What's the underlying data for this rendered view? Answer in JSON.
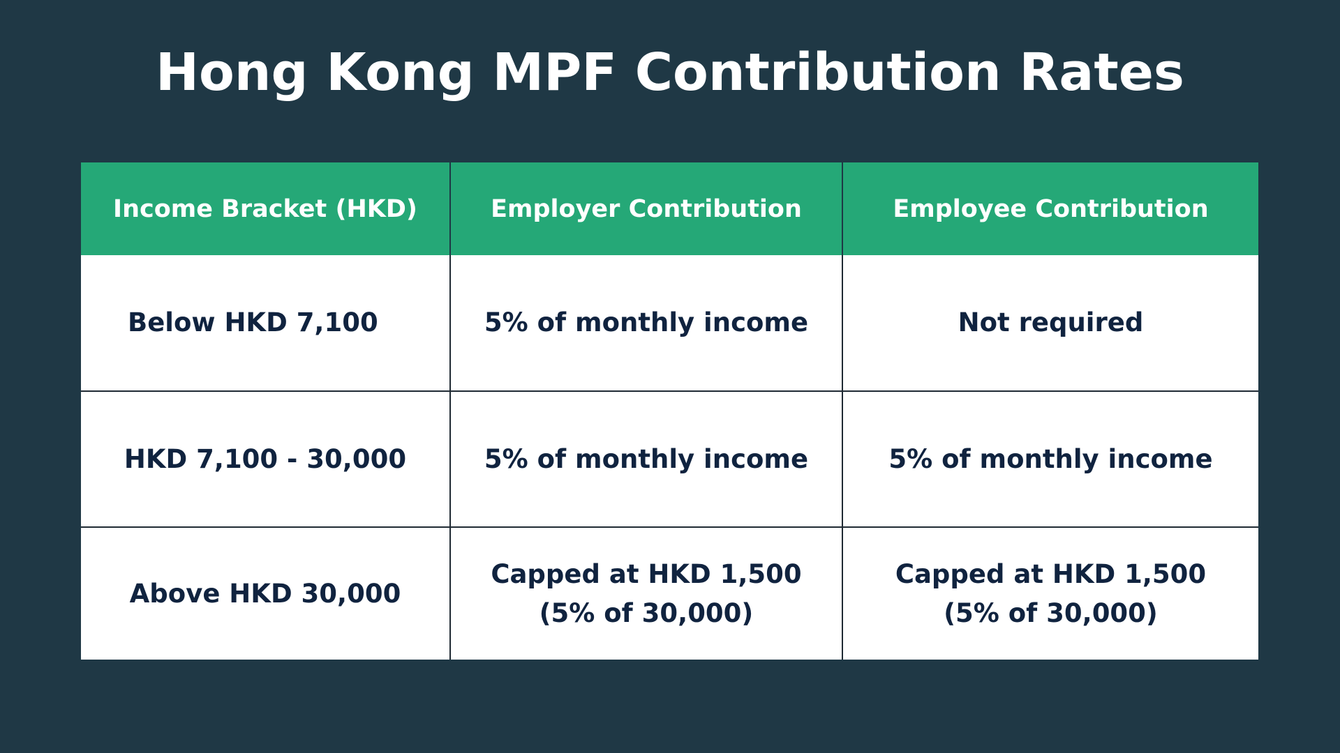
{
  "title": "Hong Kong MPF Contribution Rates",
  "colors": {
    "background": "#1f3845",
    "header": "#25a877",
    "text": "#10233f"
  },
  "table": {
    "headers": [
      "Income Bracket (HKD)",
      "Employer Contribution",
      "Employee Contribution"
    ],
    "rows": [
      [
        "Below HKD 7,100",
        "5% of monthly income",
        "Not required"
      ],
      [
        "HKD 7,100 - 30,000",
        "5% of monthly income",
        "5% of monthly income"
      ],
      [
        [
          "Above HKD 30,000"
        ],
        [
          "Capped at HKD 1,500",
          "(5% of 30,000)"
        ],
        [
          "Capped at HKD 1,500",
          "(5% of 30,000)"
        ]
      ]
    ]
  }
}
